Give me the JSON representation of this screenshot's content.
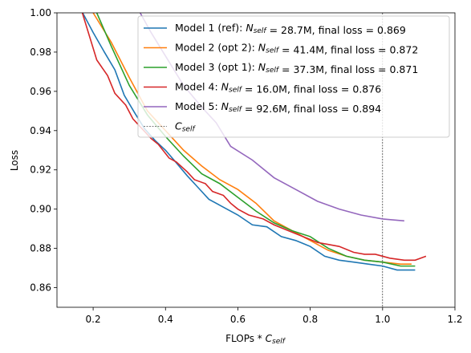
{
  "chart_data": {
    "type": "line",
    "xlabel": "FLOPs * Cself",
    "ylabel": "Loss",
    "xlim": [
      0.1,
      1.2
    ],
    "xticks": [
      {
        "value": 0.2,
        "label": "0.2"
      },
      {
        "value": 0.4,
        "label": "0.4"
      },
      {
        "value": 0.6,
        "label": "0.6"
      },
      {
        "value": 0.8,
        "label": "0.8"
      },
      {
        "value": 1.0,
        "label": "1.0"
      },
      {
        "value": 1.2,
        "label": "1.2"
      }
    ],
    "ylim": [
      0.85,
      1.0
    ],
    "yticks": [
      {
        "value": 0.86,
        "label": "0.86"
      },
      {
        "value": 0.88,
        "label": "0.88"
      },
      {
        "value": 0.9,
        "label": "0.90"
      },
      {
        "value": 0.92,
        "label": "0.92"
      },
      {
        "value": 0.94,
        "label": "0.94"
      },
      {
        "value": 0.96,
        "label": "0.96"
      },
      {
        "value": 0.98,
        "label": "0.98"
      },
      {
        "value": 1.0,
        "label": "1.00"
      }
    ],
    "legend": "upper right",
    "vline": {
      "x": 1.0,
      "label": "Cself",
      "color": "#000000"
    },
    "series": [
      {
        "name": "Model 1 (ref): Nself = 28.7M, final loss = 0.869",
        "color": "#1f77b4",
        "x": [
          0.171,
          0.2,
          0.231,
          0.26,
          0.286,
          0.315,
          0.342,
          0.371,
          0.4,
          0.428,
          0.46,
          0.49,
          0.52,
          0.55,
          0.6,
          0.64,
          0.68,
          0.72,
          0.76,
          0.8,
          0.84,
          0.88,
          0.92,
          0.96,
          1.0,
          1.04,
          1.09
        ],
        "values": [
          1.0,
          0.99,
          0.98,
          0.971,
          0.958,
          0.949,
          0.941,
          0.935,
          0.93,
          0.924,
          0.917,
          0.911,
          0.905,
          0.902,
          0.897,
          0.892,
          0.891,
          0.886,
          0.884,
          0.881,
          0.876,
          0.874,
          0.873,
          0.872,
          0.871,
          0.869,
          0.869
        ]
      },
      {
        "name": "Model 2 (opt 2): Nself = 41.4M, final loss = 0.872",
        "color": "#ff7f0e",
        "x": [
          0.2,
          0.25,
          0.3,
          0.35,
          0.4,
          0.45,
          0.5,
          0.55,
          0.6,
          0.65,
          0.7,
          0.75,
          0.8,
          0.85,
          0.9,
          0.95,
          1.0,
          1.05,
          1.08
        ],
        "values": [
          1.0,
          0.985,
          0.967,
          0.95,
          0.94,
          0.93,
          0.922,
          0.915,
          0.91,
          0.903,
          0.894,
          0.889,
          0.884,
          0.879,
          0.876,
          0.874,
          0.873,
          0.872,
          0.872
        ]
      },
      {
        "name": "Model 3 (opt 1): Nself = 37.3M, final loss = 0.871",
        "color": "#2ca02c",
        "x": [
          0.21,
          0.25,
          0.3,
          0.35,
          0.4,
          0.45,
          0.5,
          0.55,
          0.6,
          0.65,
          0.7,
          0.75,
          0.8,
          0.85,
          0.9,
          0.95,
          1.0,
          1.05,
          1.09
        ],
        "values": [
          1.0,
          0.983,
          0.963,
          0.948,
          0.937,
          0.927,
          0.918,
          0.913,
          0.906,
          0.899,
          0.893,
          0.889,
          0.886,
          0.88,
          0.876,
          0.874,
          0.873,
          0.871,
          0.871
        ]
      },
      {
        "name": "Model 4: Nself = 16.0M, final loss = 0.876",
        "color": "#d62728",
        "x": [
          0.17,
          0.19,
          0.21,
          0.24,
          0.26,
          0.29,
          0.31,
          0.33,
          0.36,
          0.38,
          0.41,
          0.43,
          0.46,
          0.48,
          0.51,
          0.53,
          0.56,
          0.58,
          0.6,
          0.63,
          0.67,
          0.7,
          0.74,
          0.78,
          0.82,
          0.85,
          0.88,
          0.92,
          0.95,
          0.98,
          1.02,
          1.06,
          1.09,
          1.12
        ],
        "values": [
          1.0,
          0.988,
          0.976,
          0.968,
          0.959,
          0.953,
          0.946,
          0.942,
          0.936,
          0.933,
          0.926,
          0.924,
          0.919,
          0.915,
          0.913,
          0.909,
          0.907,
          0.903,
          0.9,
          0.897,
          0.895,
          0.892,
          0.889,
          0.886,
          0.883,
          0.882,
          0.881,
          0.878,
          0.877,
          0.877,
          0.875,
          0.874,
          0.874,
          0.876
        ]
      },
      {
        "name": "Model 5: Nself = 92.6M, final loss = 0.894",
        "color": "#9467bd",
        "x": [
          0.33,
          0.36,
          0.4,
          0.45,
          0.5,
          0.54,
          0.58,
          0.64,
          0.7,
          0.76,
          0.82,
          0.88,
          0.94,
          1.0,
          1.06
        ],
        "values": [
          1.0,
          0.99,
          0.978,
          0.963,
          0.952,
          0.944,
          0.932,
          0.925,
          0.916,
          0.91,
          0.904,
          0.9,
          0.897,
          0.895,
          0.894
        ]
      }
    ]
  }
}
